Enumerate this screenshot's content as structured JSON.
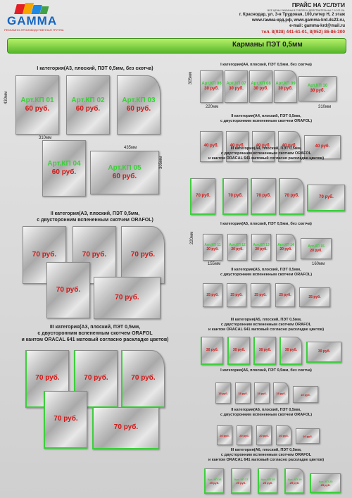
{
  "header": {
    "logo": "GAMMA",
    "tagline": "РЕКЛАМНО-ПРОИЗВОДСТВЕННАЯ ГРУППА",
    "title": "ПРАЙС НА УСЛУГИ",
    "note": "ВСЕ ЦЕНЫ УКАЗАНЫ В РУБЛЯХ И ДЕЙСТВИТЕЛЬНЫ С 10.02.15г.",
    "address": "г. Краснодар, ул. 3-я Трудовая, 100,литер Н, 2 этаж",
    "web": "www.гамма-крд.рф,  www.gamma-krd.ds23.ru,",
    "email": "e-mail: gamma-krd@mail.ru",
    "phone": "тел. 8(928) 441-61-01, 8(952) 86-86-300"
  },
  "banner": "Карманы ПЭТ 0,5мм",
  "sections": [
    {
      "title": [
        "I категория(А3, плоский, ПЭТ 0,5мм, без скотча)"
      ],
      "items": [
        {
          "art": "Арт.КП 01",
          "price": "60 руб."
        },
        {
          "art": "Арт.КП 02",
          "price": "60 руб."
        },
        {
          "art": "Арт.КП 03",
          "price": "60 руб."
        },
        {
          "art": "Арт.КП 04",
          "price": "60 руб."
        },
        {
          "art": "Арт.КП 05",
          "price": "60 руб."
        }
      ],
      "dims": [
        "430мм",
        "310мм",
        "435мм",
        "305мм"
      ]
    },
    {
      "title": [
        "II категория(А3, плоский, ПЭТ 0,5мм,",
        "с двусторонним вспененным скотчем ORAFOL)"
      ],
      "items": [
        {
          "price": "70 руб."
        },
        {
          "price": "70 руб."
        },
        {
          "price": "70 руб."
        },
        {
          "price": "70 руб."
        },
        {
          "price": "70 руб."
        }
      ]
    },
    {
      "title": [
        "III категория(А3, плоский, ПЭТ 0,5мм,",
        "с двусторонним вспененным скотчем ORAFOL",
        "и кантом ORACAL 641 матовый согласно раскладке цветов)"
      ],
      "items": [
        {
          "price": "70 руб."
        },
        {
          "price": "70 руб."
        },
        {
          "price": "70 руб."
        },
        {
          "price": "70 руб."
        },
        {
          "price": "70 руб."
        }
      ]
    },
    {
      "title": [
        "I категория(А4, плоский, ПЭТ 0,5мм, без скотча)"
      ],
      "items": [
        {
          "art": "Арт.КП 06",
          "price": "30 руб."
        },
        {
          "art": "Арт.КП 07",
          "price": "30 руб."
        },
        {
          "art": "Арт.КП 08",
          "price": "30 руб."
        },
        {
          "art": "Арт.КП 09",
          "price": "30 руб."
        },
        {
          "art": "Арт.КП 10",
          "price": "30 руб."
        }
      ],
      "dims": [
        "305мм",
        "220мм",
        "310мм"
      ]
    },
    {
      "title": [
        "II категория(А4, плоский, ПЭТ 0,5мм,",
        "с двусторонним вспененным скотчем ORAFOL)"
      ],
      "items": [
        {
          "price": "40 руб."
        },
        {
          "price": "40 руб."
        },
        {
          "price": "40 руб."
        },
        {
          "price": "40 руб."
        },
        {
          "price": "40 руб."
        }
      ]
    },
    {
      "title": [
        "III категория(А4, плоский, ПЭТ 0,5мм,",
        "с двусторонним вспененным скотчем ORAFOL",
        "и кантом ORACAL 641 матовый согласно раскладке цветов)"
      ],
      "items": [
        {
          "price": "70 руб."
        },
        {
          "price": "70 руб."
        },
        {
          "price": "70 руб."
        },
        {
          "price": "70 руб."
        },
        {
          "price": "70 руб."
        }
      ]
    },
    {
      "title": [
        "I категория(А5, плоский, ПЭТ 0,5мм, без скотча)"
      ],
      "items": [
        {
          "art": "Арт.КП 11",
          "price": "20 руб."
        },
        {
          "art": "Арт.КП 12",
          "price": "20 руб."
        },
        {
          "art": "Арт.КП 13",
          "price": "20 руб."
        },
        {
          "art": "Арт.КП 14",
          "price": "20 руб."
        },
        {
          "art": "Арт.КП 15",
          "price": "20 руб."
        }
      ],
      "dims": [
        "220мм",
        "155мм",
        "160мм"
      ]
    },
    {
      "title": [
        "II категория(А5, плоский, ПЭТ 0,5мм,",
        "с двусторонним вспененным скотчем ORAFOL)"
      ],
      "items": [
        {
          "price": "25 руб."
        },
        {
          "price": "25 руб."
        },
        {
          "price": "25 руб."
        },
        {
          "price": "25 руб."
        },
        {
          "price": "25 руб."
        }
      ]
    },
    {
      "title": [
        "III категория(А5, плоский, ПЭТ 0,5мм,",
        "с двусторонним вспененным скотчем ORAFOL",
        "и кантом ORACAL 641 матовый согласно раскладке цветов)"
      ],
      "items": [
        {
          "price": "30 руб."
        },
        {
          "price": "30 руб."
        },
        {
          "price": "30 руб."
        },
        {
          "price": "30 руб."
        },
        {
          "price": "30 руб."
        }
      ]
    },
    {
      "title": [
        "I категория(А6, плоский, ПЭТ 0,5мм, без скотча)"
      ],
      "items": [
        {
          "price": "15 руб."
        },
        {
          "price": "15 руб."
        },
        {
          "price": "15 руб."
        },
        {
          "price": "15 руб."
        },
        {
          "price": "15 руб."
        }
      ]
    },
    {
      "title": [
        "II категория(А6, плоский, ПЭТ 0,5мм,",
        "с двусторонним вспененным скотчем ORAFOL)"
      ],
      "items": [
        {
          "price": "20 руб."
        },
        {
          "price": "20 руб."
        },
        {
          "price": "20 руб."
        },
        {
          "price": "20 руб."
        },
        {
          "price": "20 руб."
        }
      ]
    },
    {
      "title": [
        "III категория(А6, плоский, ПЭТ 0,5мм,",
        "с двусторонним вспененным скотчем ORAFOL",
        "и кантом ORACAL 641 матовый согласно раскладке цветов)"
      ],
      "items": [
        {
          "art": "Арт. КП 16",
          "price": "25 руб."
        },
        {
          "art": "Арт. КП 17",
          "price": "25 руб."
        },
        {
          "art": "Арт. КП 18",
          "price": "25 руб."
        },
        {
          "art": "Арт. КП 19",
          "price": "25 руб."
        },
        {
          "art": "Арт. КП 20",
          "price": "25 руб."
        }
      ]
    }
  ]
}
